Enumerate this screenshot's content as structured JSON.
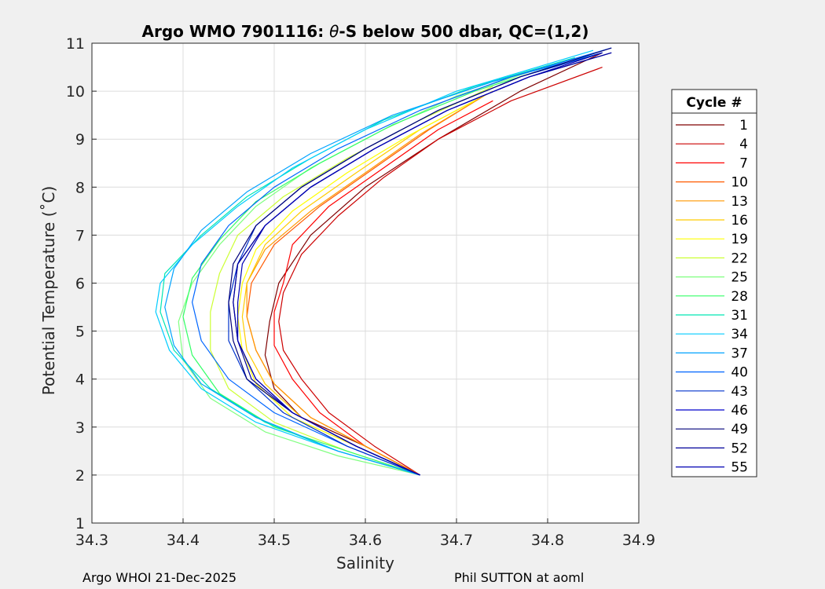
{
  "chart_data": {
    "type": "line",
    "title_prefix": "Argo WMO 7901116: ",
    "title_theta": "θ",
    "title_suffix": "-S below 500 dbar,  QC=(1,2)",
    "xlabel": "Salinity",
    "ylabel": "Potential Temperature (˚C)",
    "xlim": [
      34.3,
      34.9
    ],
    "ylim": [
      1,
      11
    ],
    "xticks": [
      "34.3",
      "34.4",
      "34.5",
      "34.6",
      "34.7",
      "34.8",
      "34.9"
    ],
    "yticks": [
      "1",
      "2",
      "3",
      "4",
      "5",
      "6",
      "7",
      "8",
      "9",
      "10",
      "11"
    ],
    "grid": true,
    "legend": {
      "title": "Cycle #",
      "position": "right-outside",
      "entries": [
        "1",
        "4",
        "7",
        "10",
        "13",
        "16",
        "19",
        "22",
        "25",
        "28",
        "31",
        "34",
        "37",
        "40",
        "43",
        "46",
        "49",
        "52",
        "55"
      ],
      "colors": [
        "#800000",
        "#cc0000",
        "#ff0000",
        "#ff5a00",
        "#ff9900",
        "#ffcc00",
        "#ffff00",
        "#ccff33",
        "#80ff80",
        "#33ff66",
        "#00e6b3",
        "#00ccff",
        "#00a3ff",
        "#0066ff",
        "#0033cc",
        "#0000cc",
        "#00007a",
        "#000099",
        "#0000b3"
      ]
    },
    "series": [
      {
        "cycle": "1",
        "color": "#800000",
        "points": [
          [
            34.66,
            2.0
          ],
          [
            34.6,
            2.6
          ],
          [
            34.53,
            3.2
          ],
          [
            34.5,
            3.8
          ],
          [
            34.49,
            4.5
          ],
          [
            34.495,
            5.2
          ],
          [
            34.505,
            6.0
          ],
          [
            34.54,
            7.0
          ],
          [
            34.6,
            8.0
          ],
          [
            34.68,
            9.0
          ],
          [
            34.77,
            10.0
          ],
          [
            34.86,
            10.8
          ]
        ]
      },
      {
        "cycle": "4",
        "color": "#cc0000",
        "points": [
          [
            34.66,
            2.0
          ],
          [
            34.61,
            2.6
          ],
          [
            34.56,
            3.3
          ],
          [
            34.53,
            4.0
          ],
          [
            34.51,
            4.6
          ],
          [
            34.505,
            5.2
          ],
          [
            34.51,
            5.8
          ],
          [
            34.53,
            6.6
          ],
          [
            34.57,
            7.4
          ],
          [
            34.62,
            8.2
          ],
          [
            34.68,
            9.0
          ],
          [
            34.76,
            9.8
          ],
          [
            34.86,
            10.5
          ]
        ]
      },
      {
        "cycle": "7",
        "color": "#ff0000",
        "points": [
          [
            34.66,
            2.0
          ],
          [
            34.6,
            2.6
          ],
          [
            34.55,
            3.3
          ],
          [
            34.52,
            4.0
          ],
          [
            34.5,
            4.7
          ],
          [
            34.5,
            5.4
          ],
          [
            34.51,
            6.0
          ],
          [
            34.52,
            6.8
          ],
          [
            34.56,
            7.6
          ],
          [
            34.62,
            8.4
          ],
          [
            34.68,
            9.2
          ],
          [
            34.74,
            9.8
          ]
        ]
      },
      {
        "cycle": "10",
        "color": "#ff5a00",
        "points": [
          [
            34.66,
            2.0
          ],
          [
            34.6,
            2.6
          ],
          [
            34.54,
            3.2
          ],
          [
            34.5,
            3.9
          ],
          [
            34.48,
            4.6
          ],
          [
            34.47,
            5.3
          ],
          [
            34.475,
            6.0
          ],
          [
            34.5,
            6.8
          ],
          [
            34.55,
            7.6
          ],
          [
            34.61,
            8.4
          ],
          [
            34.67,
            9.2
          ],
          [
            34.73,
            9.9
          ]
        ]
      },
      {
        "cycle": "13",
        "color": "#ff9900",
        "points": [
          [
            34.66,
            2.0
          ],
          [
            34.6,
            2.6
          ],
          [
            34.54,
            3.2
          ],
          [
            34.5,
            3.9
          ],
          [
            34.48,
            4.6
          ],
          [
            34.47,
            5.3
          ],
          [
            34.47,
            6.0
          ],
          [
            34.49,
            6.7
          ],
          [
            34.54,
            7.5
          ],
          [
            34.6,
            8.3
          ],
          [
            34.66,
            9.1
          ],
          [
            34.73,
            9.9
          ]
        ]
      },
      {
        "cycle": "16",
        "color": "#ffcc00",
        "points": [
          [
            34.66,
            2.0
          ],
          [
            34.59,
            2.6
          ],
          [
            34.53,
            3.2
          ],
          [
            34.49,
            3.9
          ],
          [
            34.47,
            4.6
          ],
          [
            34.465,
            5.3
          ],
          [
            34.47,
            6.0
          ],
          [
            34.49,
            6.8
          ],
          [
            34.53,
            7.5
          ],
          [
            34.59,
            8.3
          ],
          [
            34.66,
            9.2
          ],
          [
            34.74,
            10.0
          ]
        ]
      },
      {
        "cycle": "19",
        "color": "#ffff00",
        "points": [
          [
            34.66,
            2.0
          ],
          [
            34.59,
            2.6
          ],
          [
            34.52,
            3.2
          ],
          [
            34.48,
            3.9
          ],
          [
            34.465,
            4.6
          ],
          [
            34.46,
            5.3
          ],
          [
            34.465,
            6.0
          ],
          [
            34.48,
            6.7
          ],
          [
            34.52,
            7.5
          ],
          [
            34.58,
            8.3
          ],
          [
            34.65,
            9.1
          ],
          [
            34.72,
            9.8
          ]
        ]
      },
      {
        "cycle": "22",
        "color": "#ccff33",
        "points": [
          [
            34.66,
            2.0
          ],
          [
            34.58,
            2.5
          ],
          [
            34.5,
            3.1
          ],
          [
            34.45,
            3.8
          ],
          [
            34.43,
            4.6
          ],
          [
            34.43,
            5.4
          ],
          [
            34.44,
            6.2
          ],
          [
            34.46,
            7.0
          ],
          [
            34.51,
            7.8
          ],
          [
            34.58,
            8.6
          ],
          [
            34.66,
            9.4
          ],
          [
            34.74,
            10.1
          ]
        ]
      },
      {
        "cycle": "25",
        "color": "#80ff80",
        "points": [
          [
            34.66,
            2.0
          ],
          [
            34.57,
            2.4
          ],
          [
            34.49,
            2.9
          ],
          [
            34.43,
            3.6
          ],
          [
            34.4,
            4.4
          ],
          [
            34.395,
            5.2
          ],
          [
            34.41,
            6.0
          ],
          [
            34.44,
            6.8
          ],
          [
            34.48,
            7.6
          ],
          [
            34.54,
            8.4
          ],
          [
            34.62,
            9.2
          ],
          [
            34.7,
            9.9
          ],
          [
            34.78,
            10.4
          ]
        ]
      },
      {
        "cycle": "28",
        "color": "#33ff66",
        "points": [
          [
            34.66,
            2.0
          ],
          [
            34.58,
            2.5
          ],
          [
            34.5,
            3.0
          ],
          [
            34.44,
            3.7
          ],
          [
            34.41,
            4.5
          ],
          [
            34.4,
            5.3
          ],
          [
            34.41,
            6.1
          ],
          [
            34.44,
            6.9
          ],
          [
            34.48,
            7.7
          ],
          [
            34.55,
            8.5
          ],
          [
            34.63,
            9.3
          ],
          [
            34.72,
            10.0
          ],
          [
            34.82,
            10.6
          ]
        ]
      },
      {
        "cycle": "31",
        "color": "#00e6b3",
        "points": [
          [
            34.66,
            2.0
          ],
          [
            34.57,
            2.5
          ],
          [
            34.49,
            3.1
          ],
          [
            34.43,
            3.8
          ],
          [
            34.39,
            4.6
          ],
          [
            34.375,
            5.4
          ],
          [
            34.38,
            6.2
          ],
          [
            34.42,
            7.0
          ],
          [
            34.47,
            7.8
          ],
          [
            34.54,
            8.6
          ],
          [
            34.62,
            9.4
          ],
          [
            34.72,
            10.1
          ],
          [
            34.83,
            10.7
          ]
        ]
      },
      {
        "cycle": "34",
        "color": "#00ccff",
        "points": [
          [
            34.66,
            2.0
          ],
          [
            34.57,
            2.5
          ],
          [
            34.48,
            3.1
          ],
          [
            34.42,
            3.8
          ],
          [
            34.385,
            4.6
          ],
          [
            34.37,
            5.4
          ],
          [
            34.375,
            6.0
          ],
          [
            34.41,
            6.8
          ],
          [
            34.46,
            7.6
          ],
          [
            34.52,
            8.4
          ],
          [
            34.6,
            9.2
          ],
          [
            34.7,
            10.0
          ],
          [
            34.85,
            10.85
          ]
        ]
      },
      {
        "cycle": "37",
        "color": "#00a3ff",
        "points": [
          [
            34.66,
            2.0
          ],
          [
            34.57,
            2.5
          ],
          [
            34.48,
            3.2
          ],
          [
            34.42,
            3.9
          ],
          [
            34.39,
            4.7
          ],
          [
            34.38,
            5.5
          ],
          [
            34.39,
            6.3
          ],
          [
            34.42,
            7.1
          ],
          [
            34.47,
            7.9
          ],
          [
            34.54,
            8.7
          ],
          [
            34.63,
            9.5
          ],
          [
            34.74,
            10.2
          ],
          [
            34.86,
            10.8
          ]
        ]
      },
      {
        "cycle": "40",
        "color": "#0066ff",
        "points": [
          [
            34.66,
            2.0
          ],
          [
            34.58,
            2.6
          ],
          [
            34.5,
            3.3
          ],
          [
            34.45,
            4.0
          ],
          [
            34.42,
            4.8
          ],
          [
            34.41,
            5.6
          ],
          [
            34.42,
            6.4
          ],
          [
            34.45,
            7.2
          ],
          [
            34.5,
            8.0
          ],
          [
            34.57,
            8.8
          ],
          [
            34.66,
            9.6
          ],
          [
            34.76,
            10.3
          ],
          [
            34.87,
            10.9
          ]
        ]
      },
      {
        "cycle": "43",
        "color": "#0033cc",
        "points": [
          [
            34.66,
            2.0
          ],
          [
            34.58,
            2.6
          ],
          [
            34.51,
            3.3
          ],
          [
            34.47,
            4.0
          ],
          [
            34.45,
            4.8
          ],
          [
            34.45,
            5.6
          ],
          [
            34.46,
            6.4
          ],
          [
            34.48,
            7.2
          ],
          [
            34.53,
            8.0
          ],
          [
            34.6,
            8.8
          ],
          [
            34.68,
            9.6
          ],
          [
            34.77,
            10.3
          ],
          [
            34.86,
            10.8
          ]
        ]
      },
      {
        "cycle": "46",
        "color": "#0000cc",
        "points": [
          [
            34.66,
            2.0
          ],
          [
            34.59,
            2.6
          ],
          [
            34.52,
            3.3
          ],
          [
            34.48,
            4.0
          ],
          [
            34.46,
            4.8
          ],
          [
            34.455,
            5.6
          ],
          [
            34.46,
            6.4
          ],
          [
            34.49,
            7.2
          ],
          [
            34.54,
            8.0
          ],
          [
            34.61,
            8.8
          ],
          [
            34.69,
            9.6
          ],
          [
            34.78,
            10.3
          ],
          [
            34.87,
            10.8
          ]
        ]
      },
      {
        "cycle": "49",
        "color": "#00007a",
        "points": [
          [
            34.66,
            2.0
          ],
          [
            34.59,
            2.6
          ],
          [
            34.52,
            3.3
          ],
          [
            34.47,
            4.0
          ],
          [
            34.455,
            4.8
          ],
          [
            34.45,
            5.6
          ],
          [
            34.455,
            6.4
          ],
          [
            34.48,
            7.2
          ],
          [
            34.53,
            8.0
          ],
          [
            34.6,
            8.8
          ],
          [
            34.68,
            9.6
          ],
          [
            34.77,
            10.3
          ],
          [
            34.87,
            10.9
          ]
        ]
      },
      {
        "cycle": "52",
        "color": "#000099",
        "points": [
          [
            34.66,
            2.0
          ],
          [
            34.59,
            2.6
          ],
          [
            34.52,
            3.3
          ],
          [
            34.475,
            4.0
          ],
          [
            34.46,
            4.8
          ],
          [
            34.455,
            5.6
          ],
          [
            34.46,
            6.4
          ],
          [
            34.49,
            7.2
          ],
          [
            34.54,
            8.0
          ],
          [
            34.61,
            8.8
          ],
          [
            34.69,
            9.6
          ],
          [
            34.78,
            10.3
          ],
          [
            34.87,
            10.8
          ]
        ]
      },
      {
        "cycle": "55",
        "color": "#0000b3",
        "points": [
          [
            34.66,
            2.0
          ],
          [
            34.59,
            2.6
          ],
          [
            34.52,
            3.3
          ],
          [
            34.48,
            4.0
          ],
          [
            34.46,
            4.8
          ],
          [
            34.46,
            5.6
          ],
          [
            34.465,
            6.4
          ],
          [
            34.49,
            7.2
          ],
          [
            34.54,
            8.0
          ],
          [
            34.61,
            8.8
          ],
          [
            34.69,
            9.6
          ],
          [
            34.78,
            10.3
          ],
          [
            34.86,
            10.8
          ]
        ]
      }
    ]
  },
  "footer": {
    "left": "Argo WHOI 21-Dec-2025",
    "right": "Phil SUTTON at aoml"
  }
}
